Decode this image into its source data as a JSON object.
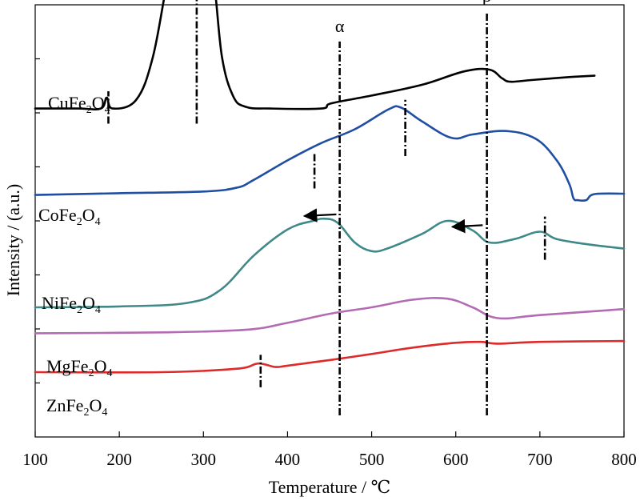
{
  "chart_data": {
    "type": "line",
    "title": "",
    "xlabel": "Temperature / ℃",
    "ylabel": "Intensity / (a.u.)",
    "xlim": [
      100,
      800
    ],
    "xticks": [
      "100",
      "200",
      "300",
      "400",
      "500",
      "600",
      "700",
      "800"
    ],
    "grid": false,
    "legend": "none",
    "series": [
      {
        "name": "CuFe2O4",
        "label_base": "CuFe",
        "sub1": "2",
        "label_mid": "O",
        "sub2": "4",
        "color": "#000000",
        "points": [
          [
            100,
            0.76
          ],
          [
            150,
            0.76
          ],
          [
            178,
            0.76
          ],
          [
            185,
            0.785
          ],
          [
            192,
            0.76
          ],
          [
            220,
            0.78
          ],
          [
            240,
            0.88
          ],
          [
            260,
            1.08
          ],
          [
            275,
            1.14
          ],
          [
            290,
            1.165
          ],
          [
            300,
            1.15
          ],
          [
            312,
            1.06
          ],
          [
            322,
            0.88
          ],
          [
            335,
            0.79
          ],
          [
            350,
            0.764
          ],
          [
            380,
            0.76
          ],
          [
            440,
            0.76
          ],
          [
            452,
            0.772
          ],
          [
            500,
            0.79
          ],
          [
            560,
            0.815
          ],
          [
            610,
            0.846
          ],
          [
            640,
            0.85
          ],
          [
            655,
            0.83
          ],
          [
            665,
            0.822
          ],
          [
            690,
            0.826
          ],
          [
            730,
            0.832
          ],
          [
            765,
            0.836
          ]
        ]
      },
      {
        "name": "CoFe2O4",
        "label_base": "CoFe",
        "sub1": "2",
        "label_mid": "O",
        "sub2": "4",
        "color": "#1f4ea3",
        "points": [
          [
            100,
            0.56
          ],
          [
            200,
            0.564
          ],
          [
            300,
            0.568
          ],
          [
            340,
            0.577
          ],
          [
            360,
            0.595
          ],
          [
            400,
            0.64
          ],
          [
            440,
            0.68
          ],
          [
            480,
            0.712
          ],
          [
            520,
            0.758
          ],
          [
            535,
            0.762
          ],
          [
            560,
            0.73
          ],
          [
            595,
            0.692
          ],
          [
            620,
            0.7
          ],
          [
            660,
            0.708
          ],
          [
            695,
            0.69
          ],
          [
            720,
            0.64
          ],
          [
            735,
            0.585
          ],
          [
            740,
            0.552
          ],
          [
            745,
            0.548
          ],
          [
            755,
            0.548
          ],
          [
            765,
            0.562
          ],
          [
            800,
            0.563
          ]
        ]
      },
      {
        "name": "NiFe2O4",
        "label_base": "NiFe",
        "sub1": "2",
        "label_mid": "O",
        "sub2": "4",
        "color": "#3f8a88",
        "points": [
          [
            100,
            0.3
          ],
          [
            200,
            0.302
          ],
          [
            280,
            0.31
          ],
          [
            320,
            0.34
          ],
          [
            360,
            0.42
          ],
          [
            400,
            0.48
          ],
          [
            430,
            0.5
          ],
          [
            445,
            0.505
          ],
          [
            460,
            0.495
          ],
          [
            480,
            0.45
          ],
          [
            500,
            0.43
          ],
          [
            520,
            0.437
          ],
          [
            560,
            0.47
          ],
          [
            590,
            0.5
          ],
          [
            620,
            0.478
          ],
          [
            640,
            0.45
          ],
          [
            670,
            0.458
          ],
          [
            700,
            0.475
          ],
          [
            720,
            0.458
          ],
          [
            760,
            0.445
          ],
          [
            800,
            0.436
          ]
        ]
      },
      {
        "name": "MgFe2O4",
        "label_base": "MgFe",
        "sub1": "2",
        "label_mid": "O",
        "sub2": "4",
        "color": "#b36cb3",
        "points": [
          [
            100,
            0.24
          ],
          [
            250,
            0.242
          ],
          [
            350,
            0.248
          ],
          [
            400,
            0.264
          ],
          [
            450,
            0.285
          ],
          [
            500,
            0.3
          ],
          [
            550,
            0.318
          ],
          [
            590,
            0.32
          ],
          [
            620,
            0.3
          ],
          [
            650,
            0.275
          ],
          [
            700,
            0.282
          ],
          [
            800,
            0.296
          ]
        ]
      },
      {
        "name": "ZnFe2O4",
        "label_base": "ZnFe",
        "sub1": "2",
        "label_mid": "O",
        "sub2": "4",
        "color": "#dd2a2a",
        "points": [
          [
            100,
            0.15
          ],
          [
            250,
            0.15
          ],
          [
            340,
            0.158
          ],
          [
            365,
            0.17
          ],
          [
            385,
            0.162
          ],
          [
            400,
            0.165
          ],
          [
            450,
            0.178
          ],
          [
            500,
            0.192
          ],
          [
            550,
            0.207
          ],
          [
            600,
            0.218
          ],
          [
            630,
            0.22
          ],
          [
            650,
            0.216
          ],
          [
            700,
            0.22
          ],
          [
            800,
            0.222
          ]
        ]
      }
    ],
    "markers": [
      {
        "type": "dash-dot",
        "x": 187,
        "y_from": 0.725,
        "y_to": 0.8
      },
      {
        "type": "dash-dot",
        "x": 292,
        "y_from": 0.725,
        "y_to": 1.2
      },
      {
        "type": "dash-dot",
        "x": 432,
        "y_from": 0.575,
        "y_to": 0.66
      },
      {
        "type": "dash-dot",
        "x": 540,
        "y_from": 0.65,
        "y_to": 0.78
      },
      {
        "type": "dash-dot",
        "x": 706,
        "y_from": 0.41,
        "y_to": 0.51
      },
      {
        "type": "dash-dot",
        "x": 368,
        "y_from": 0.115,
        "y_to": 0.19
      },
      {
        "type": "dash-dot",
        "x": 462,
        "y_from": 0.05,
        "y_to": 0.915,
        "label": "α"
      },
      {
        "type": "dash-dot",
        "x": 637,
        "y_from": 0.05,
        "y_to": 0.985,
        "label": "β"
      }
    ],
    "arrows": [
      {
        "x_from": 458,
        "x_to": 420,
        "y": 0.515
      },
      {
        "x_from": 632,
        "x_to": 596,
        "y": 0.49
      }
    ]
  }
}
